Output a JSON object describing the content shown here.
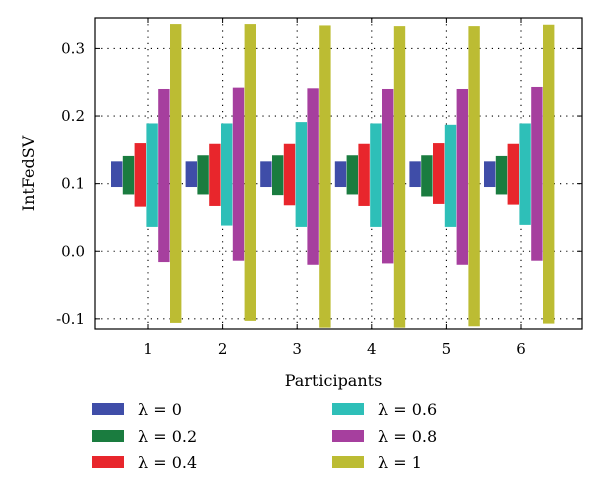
{
  "chart_data": {
    "type": "bar",
    "categories": [
      "1",
      "2",
      "3",
      "4",
      "5",
      "6"
    ],
    "xlabel": "Participants",
    "ylabel": "IntFedSV",
    "ylim": [
      -0.115,
      0.345
    ],
    "yticks": [
      -0.1,
      0.0,
      0.1,
      0.2,
      0.3
    ],
    "ytick_labels": [
      "-0.1",
      "0.0",
      "0.1",
      "0.2",
      "0.3"
    ],
    "grid": "dotted",
    "legend_position": "bottom",
    "series": [
      {
        "name": "λ = 0",
        "color": "#3F4DA8",
        "low": [
          0.095,
          0.095,
          0.095,
          0.095,
          0.095,
          0.095
        ],
        "high": [
          0.133,
          0.133,
          0.133,
          0.133,
          0.133,
          0.133
        ]
      },
      {
        "name": "λ = 0.2",
        "color": "#1A7C3F",
        "low": [
          0.084,
          0.084,
          0.083,
          0.084,
          0.081,
          0.084
        ],
        "high": [
          0.141,
          0.142,
          0.142,
          0.142,
          0.142,
          0.141
        ]
      },
      {
        "name": "λ = 0.4",
        "color": "#E8262C",
        "low": [
          0.066,
          0.067,
          0.068,
          0.067,
          0.07,
          0.069
        ],
        "high": [
          0.16,
          0.159,
          0.159,
          0.159,
          0.16,
          0.159
        ]
      },
      {
        "name": "λ = 0.6",
        "color": "#2EBFB8",
        "low": [
          0.036,
          0.038,
          0.036,
          0.036,
          0.036,
          0.039
        ],
        "high": [
          0.189,
          0.189,
          0.191,
          0.189,
          0.187,
          0.189
        ]
      },
      {
        "name": "λ = 0.8",
        "color": "#A63F9E",
        "low": [
          -0.016,
          -0.014,
          -0.02,
          -0.018,
          -0.02,
          -0.014
        ],
        "high": [
          0.24,
          0.242,
          0.241,
          0.24,
          0.24,
          0.243
        ]
      },
      {
        "name": "λ = 1",
        "color": "#BCBC33",
        "low": [
          -0.106,
          -0.103,
          -0.113,
          -0.113,
          -0.111,
          -0.107
        ],
        "high": [
          0.336,
          0.336,
          0.334,
          0.333,
          0.333,
          0.335
        ]
      }
    ]
  }
}
